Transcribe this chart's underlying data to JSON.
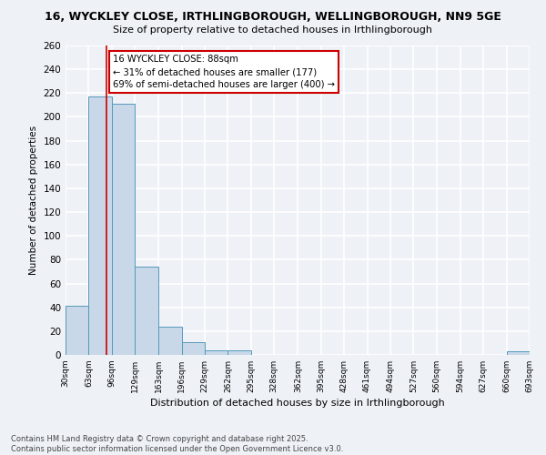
{
  "title1": "16, WYCKLEY CLOSE, IRTHLINGBOROUGH, WELLINGBOROUGH, NN9 5GE",
  "title2": "Size of property relative to detached houses in Irthlingborough",
  "xlabel": "Distribution of detached houses by size in Irthlingborough",
  "ylabel": "Number of detached properties",
  "bin_edges": [
    30,
    63,
    96,
    129,
    163,
    196,
    229,
    262,
    295,
    328,
    362,
    395,
    428,
    461,
    494,
    527,
    560,
    594,
    627,
    660,
    693
  ],
  "bin_labels": [
    "30sqm",
    "63sqm",
    "96sqm",
    "129sqm",
    "163sqm",
    "196sqm",
    "229sqm",
    "262sqm",
    "295sqm",
    "328sqm",
    "362sqm",
    "395sqm",
    "428sqm",
    "461sqm",
    "494sqm",
    "527sqm",
    "560sqm",
    "594sqm",
    "627sqm",
    "660sqm",
    "693sqm"
  ],
  "counts": [
    41,
    217,
    211,
    74,
    24,
    11,
    4,
    4,
    0,
    0,
    0,
    0,
    0,
    0,
    0,
    0,
    0,
    0,
    0,
    3
  ],
  "bar_color": "#c8d8e8",
  "bar_edge_color": "#5599bb",
  "red_line_x": 88,
  "annotation_title": "16 WYCKLEY CLOSE: 88sqm",
  "annotation_line2": "← 31% of detached houses are smaller (177)",
  "annotation_line3": "69% of semi-detached houses are larger (400) →",
  "annotation_box_color": "#ffffff",
  "annotation_box_edge": "#cc0000",
  "red_line_color": "#cc0000",
  "ylim": [
    0,
    260
  ],
  "yticks": [
    0,
    20,
    40,
    60,
    80,
    100,
    120,
    140,
    160,
    180,
    200,
    220,
    240,
    260
  ],
  "footer1": "Contains HM Land Registry data © Crown copyright and database right 2025.",
  "footer2": "Contains public sector information licensed under the Open Government Licence v3.0.",
  "background_color": "#eef2f7",
  "grid_color": "#ffffff"
}
